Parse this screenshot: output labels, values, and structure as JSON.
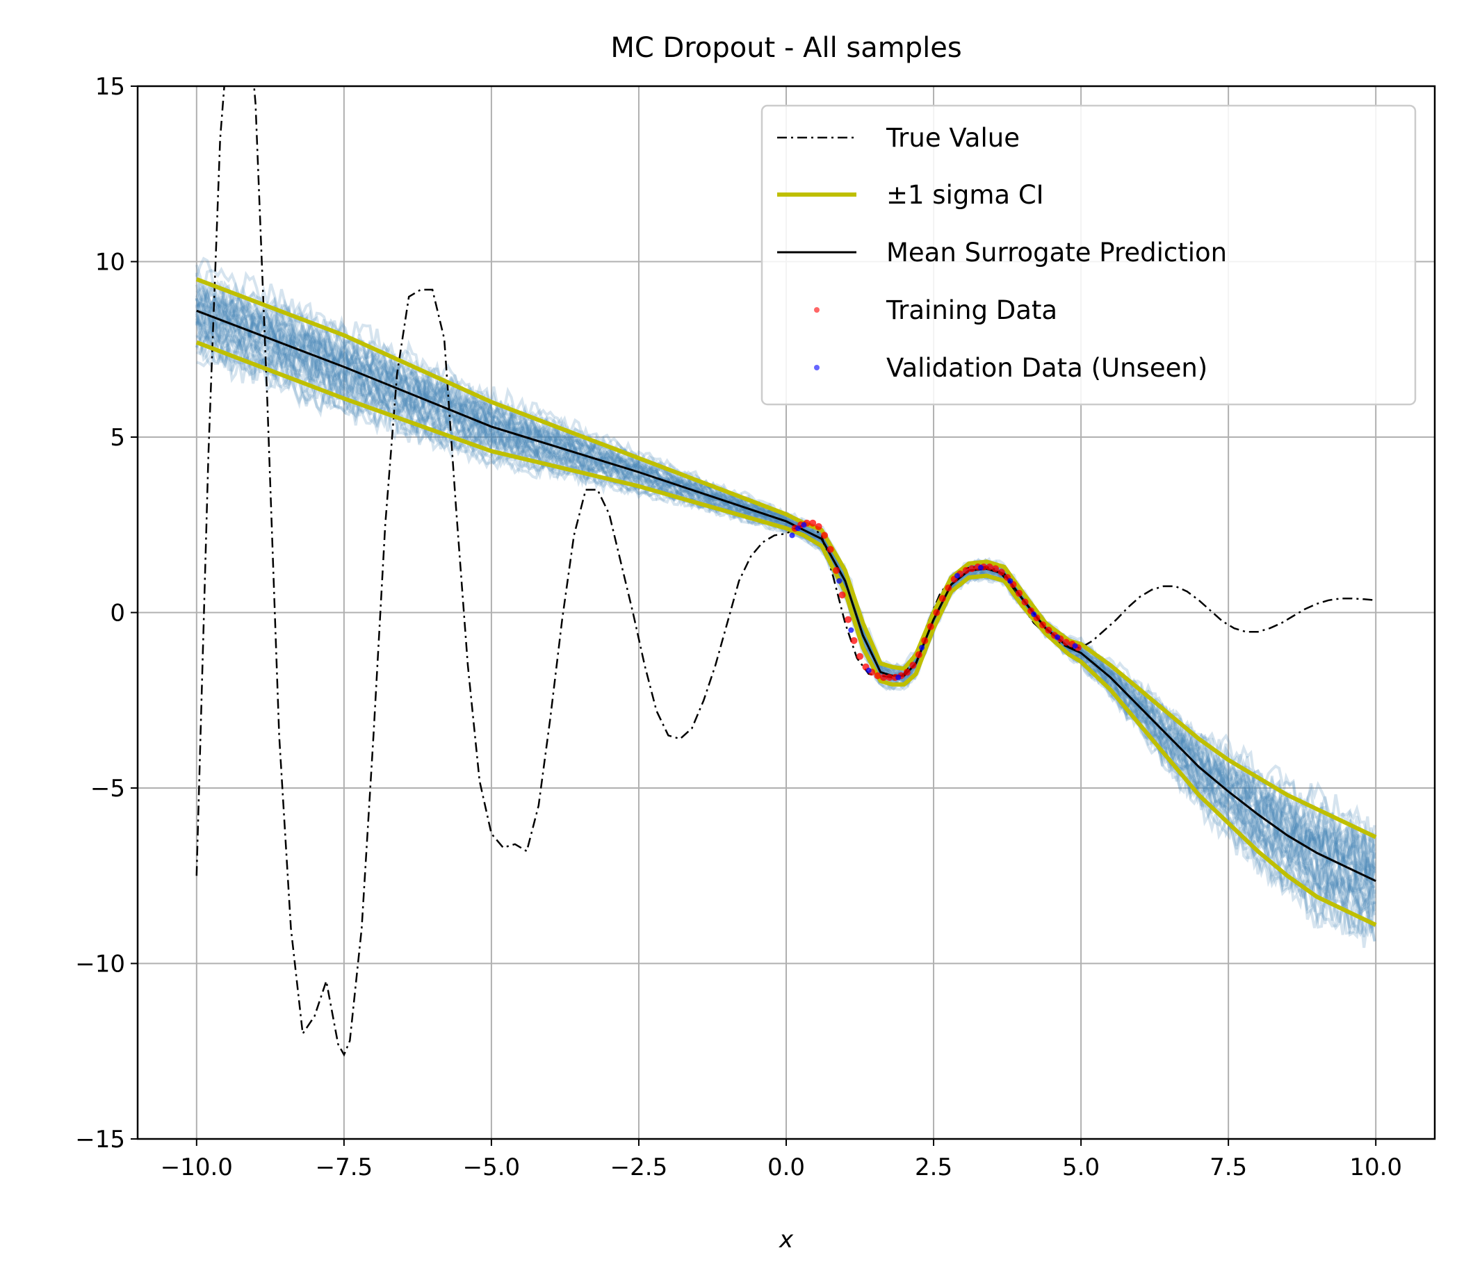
{
  "chart_data": {
    "type": "line",
    "title": "MC Dropout - All samples",
    "xlabel": "x",
    "ylabel": "",
    "xlim": [
      -11.0,
      11.0
    ],
    "ylim": [
      -15,
      15
    ],
    "x_ticks": [
      -10.0,
      -7.5,
      -5.0,
      -2.5,
      0.0,
      2.5,
      5.0,
      7.5,
      10.0
    ],
    "x_tick_labels": [
      "−10.0",
      "−7.5",
      "−5.0",
      "−2.5",
      "0.0",
      "2.5",
      "5.0",
      "7.5",
      "10.0"
    ],
    "y_ticks": [
      -15,
      -10,
      -5,
      0,
      5,
      10,
      15
    ],
    "y_tick_labels": [
      "−15",
      "−10",
      "−5",
      "0",
      "5",
      "10",
      "15"
    ],
    "grid": true,
    "legend_position": "upper-right",
    "colors": {
      "true_value": "#000000",
      "ci": "#bfbf00",
      "mean": "#000000",
      "samples": "#4682b4",
      "training": "#ff0000",
      "validation": "#0000ff"
    },
    "series": [
      {
        "name": "True Value",
        "style": "dash-dot",
        "x": [
          -10.0,
          -9.8,
          -9.6,
          -9.4,
          -9.2,
          -9.0,
          -8.8,
          -8.6,
          -8.4,
          -8.2,
          -8.0,
          -7.8,
          -7.6,
          -7.5,
          -7.4,
          -7.2,
          -7.0,
          -6.8,
          -6.6,
          -6.4,
          -6.2,
          -6.0,
          -5.8,
          -5.6,
          -5.4,
          -5.2,
          -5.0,
          -4.8,
          -4.6,
          -4.4,
          -4.2,
          -4.0,
          -3.8,
          -3.6,
          -3.4,
          -3.2,
          -3.0,
          -2.8,
          -2.6,
          -2.4,
          -2.2,
          -2.0,
          -1.8,
          -1.6,
          -1.4,
          -1.2,
          -1.0,
          -0.8,
          -0.6,
          -0.4,
          -0.2,
          0.0,
          0.2,
          0.4,
          0.6,
          0.8,
          1.0,
          1.2,
          1.4,
          1.6,
          1.8,
          2.0,
          2.2,
          2.4,
          2.6,
          2.8,
          3.0,
          3.2,
          3.4,
          3.6,
          3.8,
          4.0,
          4.2,
          4.4,
          4.6,
          4.8,
          5.0,
          5.2,
          5.4,
          5.6,
          5.8,
          6.0,
          6.2,
          6.4,
          6.6,
          6.8,
          7.0,
          7.2,
          7.4,
          7.6,
          7.8,
          8.0,
          8.2,
          8.4,
          8.6,
          8.8,
          9.0,
          9.2,
          9.4,
          9.6,
          9.8,
          10.0
        ],
        "y": [
          -7.5,
          4.5,
          13.5,
          17.8,
          18.5,
          14.5,
          6.0,
          -3.5,
          -9.0,
          -12.0,
          -11.5,
          -10.5,
          -12.3,
          -12.6,
          -12.2,
          -9.0,
          -3.5,
          2.5,
          6.8,
          9.0,
          9.2,
          9.2,
          7.8,
          3.0,
          -1.5,
          -4.8,
          -6.3,
          -6.7,
          -6.6,
          -6.8,
          -5.5,
          -3.0,
          -0.2,
          2.2,
          3.5,
          3.5,
          2.8,
          1.4,
          0.0,
          -1.5,
          -2.8,
          -3.5,
          -3.6,
          -3.3,
          -2.5,
          -1.5,
          -0.3,
          0.9,
          1.6,
          2.0,
          2.2,
          2.25,
          2.45,
          2.5,
          2.2,
          1.0,
          -0.3,
          -1.3,
          -1.75,
          -1.8,
          -1.85,
          -1.75,
          -1.2,
          -0.3,
          0.5,
          1.0,
          1.25,
          1.3,
          1.3,
          1.2,
          0.8,
          0.2,
          -0.3,
          -0.6,
          -0.85,
          -1.0,
          -1.0,
          -0.8,
          -0.5,
          -0.2,
          0.15,
          0.45,
          0.65,
          0.75,
          0.75,
          0.6,
          0.35,
          0.05,
          -0.25,
          -0.45,
          -0.55,
          -0.55,
          -0.45,
          -0.3,
          -0.1,
          0.1,
          0.25,
          0.35,
          0.4,
          0.4,
          0.38,
          0.35
        ]
      },
      {
        "name": "±1 sigma CI",
        "style": "band-lines",
        "x": [
          -10.0,
          -7.5,
          -5.0,
          -2.5,
          0.0,
          0.3,
          0.6,
          1.0,
          1.3,
          1.6,
          1.8,
          2.0,
          2.2,
          2.5,
          2.8,
          3.1,
          3.4,
          3.7,
          4.0,
          4.4,
          4.8,
          5.0,
          5.5,
          6.0,
          6.5,
          7.0,
          7.5,
          8.0,
          8.5,
          9.0,
          9.5,
          10.0
        ],
        "upper": [
          9.5,
          7.9,
          6.0,
          4.4,
          2.8,
          2.55,
          2.35,
          1.2,
          -0.3,
          -1.45,
          -1.55,
          -1.6,
          -1.2,
          0.0,
          1.0,
          1.4,
          1.45,
          1.3,
          0.6,
          -0.3,
          -0.8,
          -0.9,
          -1.5,
          -2.2,
          -2.9,
          -3.6,
          -4.2,
          -4.7,
          -5.2,
          -5.6,
          -6.0,
          -6.4
        ],
        "lower": [
          7.7,
          6.1,
          4.6,
          3.6,
          2.4,
          2.2,
          1.9,
          0.6,
          -1.0,
          -1.95,
          -2.05,
          -2.05,
          -1.75,
          -0.45,
          0.6,
          1.0,
          1.05,
          0.9,
          0.2,
          -0.6,
          -1.2,
          -1.4,
          -2.2,
          -3.2,
          -4.2,
          -5.2,
          -6.0,
          -6.8,
          -7.5,
          -8.1,
          -8.5,
          -8.9
        ]
      },
      {
        "name": "Mean Surrogate Prediction",
        "style": "solid",
        "x": [
          -10.0,
          -7.5,
          -5.0,
          -2.5,
          0.0,
          0.3,
          0.6,
          1.0,
          1.3,
          1.6,
          1.8,
          2.0,
          2.2,
          2.5,
          2.8,
          3.1,
          3.4,
          3.7,
          4.0,
          4.4,
          4.8,
          5.0,
          5.5,
          6.0,
          6.5,
          7.0,
          7.5,
          8.0,
          8.5,
          9.0,
          9.5,
          10.0
        ],
        "y": [
          8.6,
          7.0,
          5.3,
          4.0,
          2.6,
          2.35,
          2.1,
          0.9,
          -0.65,
          -1.7,
          -1.8,
          -1.8,
          -1.45,
          -0.2,
          0.8,
          1.2,
          1.25,
          1.1,
          0.4,
          -0.45,
          -1.0,
          -1.15,
          -1.85,
          -2.7,
          -3.55,
          -4.4,
          -5.1,
          -5.75,
          -6.35,
          -6.85,
          -7.25,
          -7.65
        ]
      },
      {
        "name": "Training Data",
        "style": "points",
        "x": [
          0.15,
          0.25,
          0.35,
          0.45,
          0.55,
          0.65,
          0.75,
          0.85,
          0.95,
          1.05,
          1.15,
          1.25,
          1.35,
          1.45,
          1.55,
          1.65,
          1.75,
          1.85,
          1.95,
          2.05,
          2.15,
          2.25,
          2.35,
          2.45,
          2.55,
          2.65,
          2.75,
          2.85,
          2.95,
          3.05,
          3.15,
          3.25,
          3.35,
          3.45,
          3.55,
          3.65,
          3.75,
          3.85,
          3.95,
          4.05,
          4.15,
          4.25,
          4.35,
          4.45,
          4.55,
          4.65,
          4.75,
          4.85,
          4.95
        ],
        "y": [
          2.4,
          2.5,
          2.55,
          2.55,
          2.45,
          2.2,
          1.8,
          1.2,
          0.5,
          -0.2,
          -0.8,
          -1.25,
          -1.55,
          -1.7,
          -1.8,
          -1.85,
          -1.85,
          -1.85,
          -1.8,
          -1.7,
          -1.5,
          -1.2,
          -0.8,
          -0.4,
          0.0,
          0.4,
          0.7,
          0.95,
          1.1,
          1.2,
          1.25,
          1.3,
          1.3,
          1.3,
          1.25,
          1.15,
          1.0,
          0.8,
          0.55,
          0.3,
          0.05,
          -0.15,
          -0.35,
          -0.5,
          -0.65,
          -0.75,
          -0.85,
          -0.9,
          -1.0
        ]
      },
      {
        "name": "Validation Data (Unseen)",
        "style": "points",
        "x": [
          0.1,
          0.2,
          0.3,
          0.9,
          1.1,
          1.4,
          1.9,
          2.3,
          2.9,
          3.3,
          3.8,
          4.2,
          4.6,
          4.9
        ],
        "y": [
          2.2,
          2.4,
          2.5,
          0.9,
          -0.5,
          -1.65,
          -1.85,
          -1.0,
          1.05,
          1.28,
          0.9,
          -0.05,
          -0.7,
          -0.95
        ]
      }
    ]
  }
}
